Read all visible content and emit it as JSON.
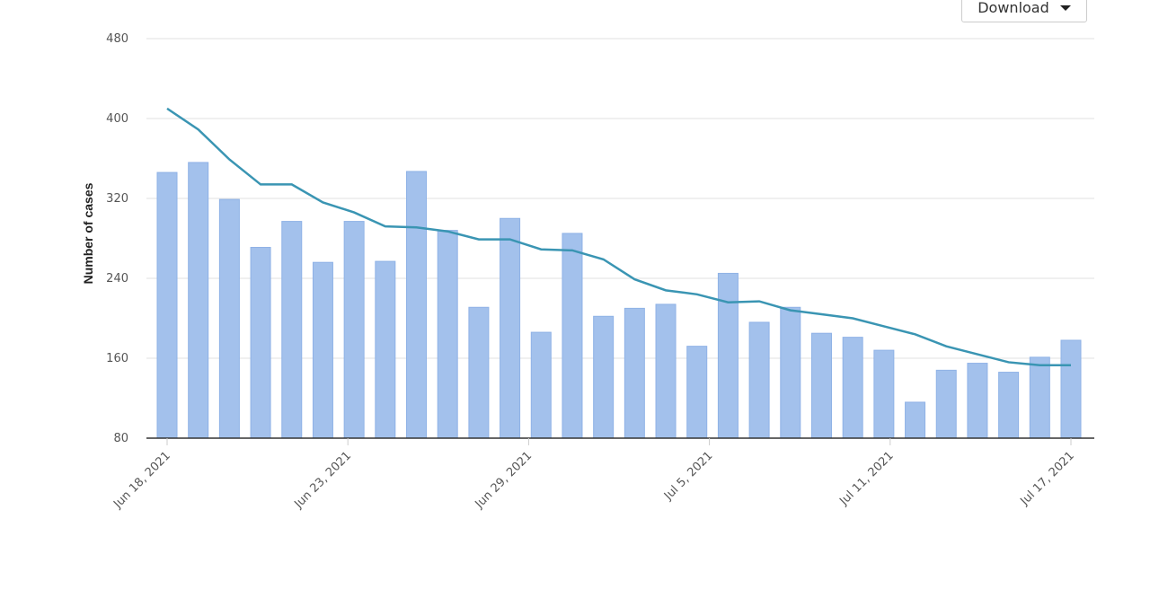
{
  "download_label": "Download",
  "chart_data": {
    "type": "bar-line",
    "y_label": "Number of cases",
    "ylim": [
      80,
      480
    ],
    "yticks": [
      80,
      160,
      240,
      320,
      400,
      480
    ],
    "grid": true,
    "xticks": [
      "Jun 18, 2021",
      "Jun 23, 2021",
      "Jun 29, 2021",
      "Jul 5, 2021",
      "Jul 11, 2021",
      "Jul 17, 2021"
    ],
    "series": [
      {
        "type": "bar",
        "color": "#a3c1ec",
        "values": [
          346,
          356,
          319,
          271,
          297,
          256,
          297,
          257,
          347,
          288,
          211,
          300,
          186,
          285,
          202,
          210,
          214,
          172,
          245,
          196,
          211,
          185,
          181,
          168,
          116,
          148,
          155,
          146,
          161,
          178
        ]
      },
      {
        "type": "line",
        "color": "#3a95b3",
        "values": [
          410,
          389,
          359,
          334,
          334,
          316,
          306,
          292,
          291,
          287,
          279,
          279,
          269,
          268,
          259,
          239,
          228,
          224,
          216,
          217,
          208,
          204,
          200,
          192,
          184,
          172,
          164,
          156,
          153,
          153
        ]
      }
    ]
  }
}
